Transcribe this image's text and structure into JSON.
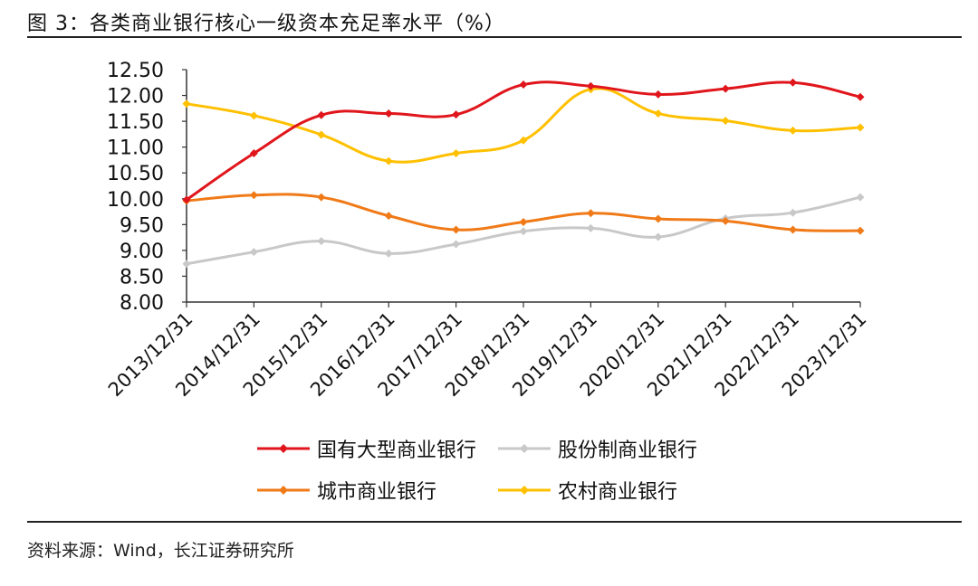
{
  "header": {
    "title": "图 3：各类商业银行核心一级资本充足率水平（%）"
  },
  "footer": {
    "source": "资料来源：Wind，长江证券研究所"
  },
  "chart_data": {
    "type": "line",
    "x": [
      "2013/12/31",
      "2014/12/31",
      "2015/12/31",
      "2016/12/31",
      "2017/12/31",
      "2018/12/31",
      "2019/12/31",
      "2020/12/31",
      "2021/12/31",
      "2022/12/31",
      "2023/12/31"
    ],
    "ylim": [
      8.0,
      12.5
    ],
    "yticks": [
      "8.00",
      "8.50",
      "9.00",
      "9.50",
      "10.00",
      "10.50",
      "11.00",
      "11.50",
      "12.00",
      "12.50"
    ],
    "grid": false,
    "legend_position": "bottom",
    "series": [
      {
        "name": "国有大型商业银行",
        "color": "#e0161c",
        "values": [
          9.98,
          10.88,
          11.62,
          11.65,
          11.63,
          12.21,
          12.18,
          12.02,
          12.13,
          12.25,
          11.97
        ]
      },
      {
        "name": "股份制商业银行",
        "color": "#c8c8c8",
        "values": [
          8.74,
          8.97,
          9.18,
          8.94,
          9.12,
          9.37,
          9.43,
          9.26,
          9.62,
          9.73,
          10.03
        ]
      },
      {
        "name": "城市商业银行",
        "color": "#f07a18",
        "values": [
          9.96,
          10.07,
          10.03,
          9.67,
          9.4,
          9.55,
          9.72,
          9.61,
          9.57,
          9.4,
          9.38
        ]
      },
      {
        "name": "农村商业银行",
        "color": "#ffc000",
        "values": [
          11.84,
          11.61,
          11.24,
          10.73,
          10.88,
          11.13,
          12.12,
          11.65,
          11.51,
          11.32,
          11.38
        ]
      }
    ]
  }
}
